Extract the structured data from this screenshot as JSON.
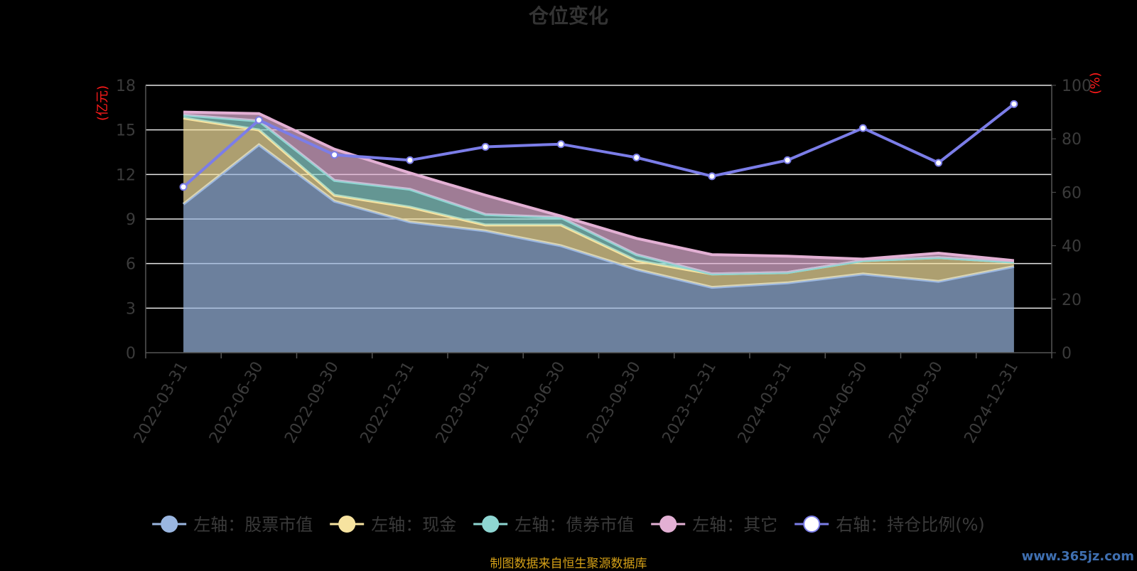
{
  "chart_data": {
    "type": "area",
    "title": "仓位变化",
    "left_axis_unit": "(亿元)",
    "right_axis_unit": "(%)",
    "categories": [
      "2022-03-31",
      "2022-06-30",
      "2022-09-30",
      "2022-12-31",
      "2023-03-31",
      "2023-06-30",
      "2023-09-30",
      "2023-12-31",
      "2024-03-31",
      "2024-06-30",
      "2024-09-30",
      "2024-12-31"
    ],
    "y_left": {
      "min": 0,
      "max": 18,
      "ticks": [
        0,
        3,
        6,
        9,
        12,
        15,
        18
      ]
    },
    "y_right": {
      "min": 0,
      "max": 100,
      "ticks": [
        0,
        20,
        40,
        60,
        80,
        100
      ]
    },
    "stacked_series": [
      {
        "name": "左轴：股票市值",
        "color": "#9ab6e0",
        "values": [
          10.0,
          14.0,
          10.2,
          8.8,
          8.2,
          7.2,
          5.6,
          4.4,
          4.7,
          5.3,
          4.8,
          5.8
        ]
      },
      {
        "name": "左轴：现金",
        "color": "#f7e3a0",
        "values": [
          5.8,
          1.0,
          0.4,
          1.0,
          0.4,
          1.4,
          0.6,
          0.9,
          0.7,
          0.9,
          1.6,
          0.3
        ]
      },
      {
        "name": "左轴：债券市值",
        "color": "#8ed6d2",
        "values": [
          0.2,
          0.6,
          1.0,
          1.2,
          0.7,
          0.5,
          0.4,
          0.0,
          0.0,
          0.0,
          0.0,
          0.0
        ]
      },
      {
        "name": "左轴：其它",
        "color": "#e3b0d4",
        "values": [
          0.2,
          0.5,
          2.1,
          1.1,
          1.3,
          0.1,
          1.1,
          1.3,
          1.1,
          0.1,
          0.3,
          0.1
        ]
      }
    ],
    "line_series": {
      "name": "右轴：持仓比例(%)",
      "color": "#7b7de8",
      "values": [
        62,
        87,
        74,
        72,
        77,
        78,
        73,
        66,
        72,
        84,
        71,
        93
      ]
    },
    "grid": true,
    "legend_position": "bottom"
  },
  "footer": {
    "source": "制图数据来自恒生聚源数据库",
    "watermark": "www.365jz.com"
  }
}
